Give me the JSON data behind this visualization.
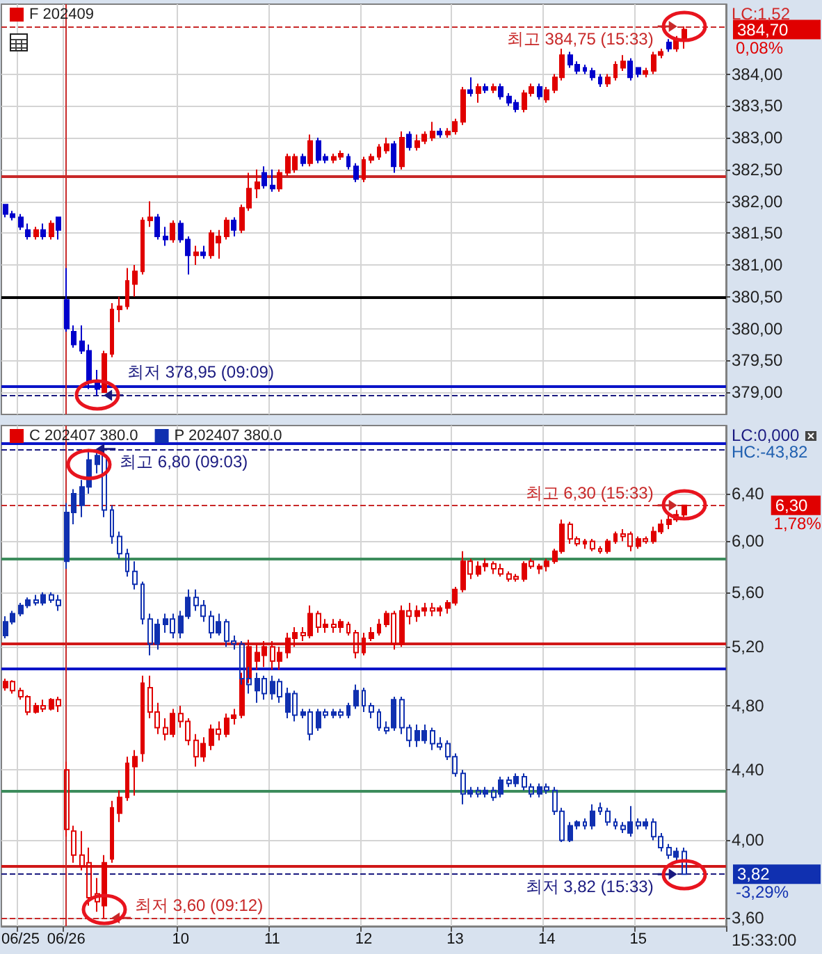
{
  "chart_data": [
    {
      "type": "candlestick",
      "legend": "top left",
      "grid": true,
      "tick_labels": "y",
      "categories": [
        null,
        null,
        "06/25",
        null,
        null,
        null,
        null,
        null,
        "06/26",
        null,
        null,
        null,
        null,
        null,
        null,
        null,
        null,
        null,
        null,
        null,
        null,
        null,
        null,
        "10",
        null,
        null,
        null,
        null,
        null,
        null,
        null,
        null,
        null,
        null,
        null,
        "11",
        null,
        null,
        null,
        null,
        null,
        null,
        null,
        null,
        null,
        null,
        null,
        "12",
        null,
        null,
        null,
        null,
        null,
        null,
        null,
        null,
        null,
        null,
        null,
        "13",
        null,
        null,
        null,
        null,
        null,
        null,
        null,
        null,
        null,
        null,
        null,
        "14",
        null,
        null,
        null,
        null,
        null,
        null,
        null,
        null,
        null,
        null,
        null,
        "15",
        null,
        null,
        null,
        null,
        null,
        null,
        null,
        null,
        null,
        null,
        null
      ],
      "series": [
        {
          "name": "F 202409",
          "ohlc": [
            [
              381.95,
              381.95,
              381.75,
              381.8
            ],
            [
              381.8,
              381.85,
              381.7,
              381.75
            ],
            [
              381.75,
              381.8,
              381.55,
              381.6
            ],
            [
              381.55,
              381.65,
              381.4,
              381.45
            ],
            [
              381.45,
              381.6,
              381.4,
              381.55
            ],
            [
              381.55,
              381.65,
              381.4,
              381.45
            ],
            [
              381.45,
              381.7,
              381.4,
              381.65
            ],
            [
              381.75,
              381.75,
              381.4,
              381.55
            ],
            [
              380.45,
              380.95,
              379.95,
              380.0
            ],
            [
              379.95,
              380.05,
              379.7,
              379.75
            ],
            [
              379.8,
              380.05,
              379.6,
              379.65
            ],
            [
              379.65,
              379.75,
              379.05,
              379.15
            ],
            [
              379.15,
              379.35,
              378.95,
              379.05
            ],
            [
              379.0,
              379.65,
              379.0,
              379.6
            ],
            [
              379.6,
              380.4,
              379.55,
              380.3
            ],
            [
              380.3,
              380.5,
              380.1,
              380.35
            ],
            [
              380.35,
              380.95,
              380.3,
              380.75
            ],
            [
              380.7,
              381.0,
              380.5,
              380.9
            ],
            [
              380.9,
              381.75,
              380.85,
              381.7
            ],
            [
              381.7,
              382.0,
              381.6,
              381.75
            ],
            [
              381.75,
              381.8,
              381.4,
              381.45
            ],
            [
              381.45,
              381.6,
              381.3,
              381.4
            ],
            [
              381.4,
              381.7,
              381.35,
              381.65
            ],
            [
              381.65,
              381.7,
              381.35,
              381.4
            ],
            [
              381.4,
              381.45,
              380.85,
              381.15
            ],
            [
              381.15,
              381.3,
              381.0,
              381.2
            ],
            [
              381.2,
              381.3,
              381.1,
              381.15
            ],
            [
              381.15,
              381.55,
              381.1,
              381.5
            ],
            [
              381.35,
              381.55,
              381.1,
              381.45
            ],
            [
              381.45,
              381.75,
              381.4,
              381.7
            ],
            [
              381.7,
              381.75,
              381.45,
              381.55
            ],
            [
              381.55,
              381.95,
              381.5,
              381.9
            ],
            [
              381.9,
              382.45,
              381.85,
              382.2
            ],
            [
              382.2,
              382.5,
              382.05,
              382.3
            ],
            [
              382.45,
              382.55,
              382.2,
              382.25
            ],
            [
              382.25,
              382.5,
              382.15,
              382.2
            ],
            [
              382.2,
              382.5,
              382.15,
              382.45
            ],
            [
              382.45,
              382.75,
              382.4,
              382.7
            ],
            [
              382.5,
              382.75,
              382.45,
              382.7
            ],
            [
              382.7,
              382.75,
              382.55,
              382.6
            ],
            [
              382.6,
              383.05,
              382.55,
              382.95
            ],
            [
              382.95,
              383.0,
              382.6,
              382.65
            ],
            [
              382.7,
              382.75,
              382.6,
              382.65
            ],
            [
              382.65,
              382.75,
              382.6,
              382.7
            ],
            [
              382.7,
              382.8,
              382.65,
              382.75
            ],
            [
              382.7,
              382.75,
              382.5,
              382.55
            ],
            [
              382.55,
              382.6,
              382.3,
              382.35
            ],
            [
              382.35,
              382.7,
              382.3,
              382.65
            ],
            [
              382.65,
              382.75,
              382.6,
              382.7
            ],
            [
              382.7,
              382.9,
              382.65,
              382.85
            ],
            [
              382.8,
              383.0,
              382.75,
              382.9
            ],
            [
              382.9,
              382.95,
              382.45,
              382.55
            ],
            [
              382.55,
              383.1,
              382.5,
              383.0
            ],
            [
              383.05,
              383.1,
              382.8,
              382.85
            ],
            [
              382.85,
              383.05,
              382.8,
              382.95
            ],
            [
              382.95,
              383.1,
              382.9,
              383.05
            ],
            [
              383.0,
              383.25,
              382.95,
              383.1
            ],
            [
              383.1,
              383.15,
              383.0,
              383.05
            ],
            [
              383.05,
              383.15,
              383.0,
              383.1
            ],
            [
              383.1,
              383.3,
              383.05,
              383.25
            ],
            [
              383.25,
              383.8,
              383.2,
              383.75
            ],
            [
              383.75,
              383.95,
              383.65,
              383.7
            ],
            [
              383.7,
              383.85,
              383.55,
              383.8
            ],
            [
              383.8,
              383.85,
              383.7,
              383.75
            ],
            [
              383.75,
              383.85,
              383.7,
              383.8
            ],
            [
              383.8,
              383.85,
              383.6,
              383.65
            ],
            [
              383.65,
              383.7,
              383.5,
              383.55
            ],
            [
              383.55,
              383.6,
              383.4,
              383.45
            ],
            [
              383.45,
              383.75,
              383.4,
              383.7
            ],
            [
              383.7,
              383.85,
              383.65,
              383.8
            ],
            [
              383.8,
              383.85,
              383.6,
              383.65
            ],
            [
              383.6,
              383.8,
              383.55,
              383.75
            ],
            [
              383.75,
              384.0,
              383.7,
              383.95
            ],
            [
              383.95,
              384.4,
              383.9,
              384.3
            ],
            [
              384.3,
              384.35,
              384.1,
              384.15
            ],
            [
              384.15,
              384.2,
              384.0,
              384.05
            ],
            [
              384.1,
              384.15,
              384.0,
              384.05
            ],
            [
              384.05,
              384.1,
              383.9,
              383.95
            ],
            [
              383.95,
              384.0,
              383.8,
              383.85
            ],
            [
              383.85,
              384.0,
              383.8,
              383.95
            ],
            [
              383.95,
              384.2,
              383.9,
              384.15
            ],
            [
              384.1,
              384.3,
              384.05,
              384.2
            ],
            [
              384.2,
              384.25,
              383.9,
              383.95
            ],
            [
              384.1,
              384.1,
              383.95,
              384.0
            ],
            [
              384.0,
              384.1,
              383.95,
              384.05
            ],
            [
              384.05,
              384.35,
              384.0,
              384.3
            ],
            [
              384.3,
              384.4,
              384.25,
              384.35
            ],
            [
              384.5,
              384.55,
              384.35,
              384.4
            ],
            [
              384.4,
              384.6,
              384.35,
              384.55
            ],
            [
              384.55,
              384.75,
              384.4,
              384.7
            ],
            null,
            null,
            null,
            null,
            null
          ],
          "colors": [
            "#0000cc",
            "#0000cc",
            "#0000cc",
            "#0000cc",
            "#e00000",
            "#0000cc",
            "#e00000",
            "#0000cc",
            "#0000cc",
            "#0000cc",
            "#0000cc",
            "#0000cc",
            "#0000cc",
            "#e00000",
            "#e00000",
            "#e00000",
            "#e00000",
            "#e00000",
            "#e00000",
            "#e00000",
            "#0000cc",
            "#0000cc",
            "#e00000",
            "#0000cc",
            "#0000cc",
            "#e00000",
            "#0000cc",
            "#e00000",
            "#e00000",
            "#e00000",
            "#0000cc",
            "#e00000",
            "#e00000",
            "#e00000",
            "#0000cc",
            "#0000cc",
            "#e00000",
            "#e00000",
            "#e00000",
            "#0000cc",
            "#e00000",
            "#0000cc",
            "#0000cc",
            "#e00000",
            "#e00000",
            "#0000cc",
            "#0000cc",
            "#e00000",
            "#e00000",
            "#e00000",
            "#e00000",
            "#0000cc",
            "#e00000",
            "#0000cc",
            "#e00000",
            "#e00000",
            "#e00000",
            "#0000cc",
            "#e00000",
            "#e00000",
            "#e00000",
            "#0000cc",
            "#e00000",
            "#0000cc",
            "#e00000",
            "#0000cc",
            "#0000cc",
            "#0000cc",
            "#e00000",
            "#e00000",
            "#0000cc",
            "#e00000",
            "#e00000",
            "#e00000",
            "#0000cc",
            "#0000cc",
            "#0000cc",
            "#0000cc",
            "#0000cc",
            "#e00000",
            "#e00000",
            "#e00000",
            "#0000cc",
            "#0000cc",
            "#e00000",
            "#e00000",
            "#e00000",
            "#0000cc",
            "#e00000",
            "#e00000",
            null,
            null,
            null,
            null,
            null
          ]
        }
      ],
      "ylim": [
        378.65,
        385.1
      ],
      "yticks": [
        {
          "value": 379,
          "label": "379,00"
        },
        {
          "value": 379.5,
          "label": "379,50"
        },
        {
          "value": 380,
          "label": "380,00"
        },
        {
          "value": 380.5,
          "label": "380,50"
        },
        {
          "value": 381,
          "label": "381,00"
        },
        {
          "value": 381.5,
          "label": "381,50"
        },
        {
          "value": 382,
          "label": "382,00"
        },
        {
          "value": 382.5,
          "label": "382,50"
        },
        {
          "value": 383,
          "label": "383,00"
        },
        {
          "value": 383.5,
          "label": "383,50"
        },
        {
          "value": 384,
          "label": "384,00"
        }
      ],
      "ref_lines": [
        {
          "axis": "y",
          "value": 384.75,
          "label": "최고 384,75 (15:33)",
          "color": "#c82828",
          "line_style": "dashed"
        },
        {
          "axis": "y",
          "value": 382.4,
          "color": "#c82828"
        },
        {
          "axis": "y",
          "value": 380.5,
          "color": "#000000"
        },
        {
          "axis": "y",
          "value": 379.1,
          "color": "#0a14c8"
        },
        {
          "axis": "y",
          "value": 378.95,
          "label": "최저 378,95 (09:09)",
          "color": "#1a1a80",
          "line_style": "dashed"
        },
        {
          "axis": "x",
          "value": "06/26",
          "color": "#c82828"
        }
      ],
      "annotations": [
        "LC:1,52",
        "384,70",
        "0,08%"
      ]
    },
    {
      "type": "candlestick",
      "legend": "top left",
      "grid": true,
      "log": true,
      "categories": [
        null,
        null,
        "06/25",
        null,
        null,
        null,
        null,
        null,
        "06/26",
        null,
        null,
        null,
        null,
        null,
        null,
        null,
        null,
        null,
        null,
        null,
        null,
        null,
        null,
        "10",
        null,
        null,
        null,
        null,
        null,
        null,
        null,
        null,
        null,
        null,
        null,
        "11",
        null,
        null,
        null,
        null,
        null,
        null,
        null,
        null,
        null,
        null,
        null,
        "12",
        null,
        null,
        null,
        null,
        null,
        null,
        null,
        null,
        null,
        null,
        null,
        "13",
        null,
        null,
        null,
        null,
        null,
        null,
        null,
        null,
        null,
        null,
        null,
        "14",
        null,
        null,
        null,
        null,
        null,
        null,
        null,
        null,
        null,
        null,
        null,
        "15",
        null,
        null,
        null,
        null,
        null,
        null,
        null,
        null,
        null,
        null,
        null
      ],
      "series": [
        {
          "name": "C 202407 380.0",
          "color": "#e00000",
          "ohlc": [
            [
              4.92,
              4.98,
              4.9,
              4.96
            ],
            [
              4.96,
              4.97,
              4.88,
              4.9
            ],
            [
              4.9,
              4.92,
              4.84,
              4.86
            ],
            [
              4.86,
              4.87,
              4.74,
              4.76
            ],
            [
              4.76,
              4.82,
              4.75,
              4.8
            ],
            [
              4.8,
              4.84,
              4.76,
              4.78
            ],
            [
              4.78,
              4.85,
              4.77,
              4.84
            ],
            [
              4.84,
              4.86,
              4.76,
              4.8
            ],
            [
              4.4,
              4.45,
              4.02,
              4.06
            ],
            [
              4.05,
              4.08,
              3.88,
              3.92
            ],
            [
              3.92,
              4.05,
              3.84,
              3.86
            ],
            [
              3.88,
              3.96,
              3.66,
              3.7
            ],
            [
              3.72,
              3.8,
              3.63,
              3.68
            ],
            [
              3.66,
              3.92,
              3.6,
              3.88
            ],
            [
              3.9,
              4.22,
              3.88,
              4.18
            ],
            [
              4.15,
              4.28,
              4.1,
              4.24
            ],
            [
              4.24,
              4.48,
              4.22,
              4.44
            ],
            [
              4.42,
              4.52,
              4.25,
              4.48
            ],
            [
              4.5,
              5.0,
              4.45,
              4.95
            ],
            [
              4.92,
              5.0,
              4.72,
              4.76
            ],
            [
              4.76,
              4.82,
              4.62,
              4.66
            ],
            [
              4.66,
              4.72,
              4.58,
              4.62
            ],
            [
              4.62,
              4.78,
              4.6,
              4.75
            ],
            [
              4.75,
              4.8,
              4.66,
              4.7
            ],
            [
              4.7,
              4.72,
              4.55,
              4.58
            ],
            [
              4.58,
              4.62,
              4.42,
              4.48
            ],
            [
              4.48,
              4.6,
              4.45,
              4.56
            ],
            [
              4.55,
              4.68,
              4.52,
              4.65
            ],
            [
              4.65,
              4.7,
              4.58,
              4.62
            ],
            [
              4.62,
              4.75,
              4.6,
              4.72
            ],
            [
              4.72,
              4.78,
              4.68,
              4.74
            ],
            [
              4.74,
              5.02,
              4.72,
              4.98
            ],
            [
              4.98,
              5.25,
              4.95,
              5.2
            ],
            [
              5.1,
              5.22,
              5.04,
              5.16
            ],
            [
              5.14,
              5.24,
              5.06,
              5.2
            ],
            [
              5.2,
              5.24,
              5.04,
              5.1
            ],
            [
              5.1,
              5.2,
              5.04,
              5.16
            ],
            [
              5.16,
              5.3,
              5.12,
              5.26
            ],
            [
              5.26,
              5.34,
              5.2,
              5.3
            ],
            [
              5.3,
              5.34,
              5.24,
              5.28
            ],
            [
              5.28,
              5.5,
              5.26,
              5.44
            ],
            [
              5.44,
              5.46,
              5.3,
              5.34
            ],
            [
              5.34,
              5.4,
              5.3,
              5.36
            ],
            [
              5.36,
              5.4,
              5.3,
              5.34
            ],
            [
              5.34,
              5.4,
              5.3,
              5.38
            ],
            [
              5.36,
              5.38,
              5.28,
              5.3
            ],
            [
              5.3,
              5.32,
              5.12,
              5.16
            ],
            [
              5.16,
              5.3,
              5.14,
              5.26
            ],
            [
              5.26,
              5.34,
              5.24,
              5.3
            ],
            [
              5.3,
              5.4,
              5.28,
              5.36
            ],
            [
              5.36,
              5.46,
              5.34,
              5.44
            ],
            [
              5.44,
              5.46,
              5.18,
              5.22
            ],
            [
              5.22,
              5.5,
              5.2,
              5.46
            ],
            [
              5.46,
              5.52,
              5.36,
              5.42
            ],
            [
              5.42,
              5.5,
              5.38,
              5.46
            ],
            [
              5.46,
              5.52,
              5.42,
              5.48
            ],
            [
              5.48,
              5.52,
              5.42,
              5.46
            ],
            [
              5.46,
              5.5,
              5.42,
              5.48
            ],
            [
              5.48,
              5.54,
              5.44,
              5.52
            ],
            [
              5.52,
              5.64,
              5.5,
              5.62
            ],
            [
              5.62,
              5.92,
              5.6,
              5.84
            ],
            [
              5.84,
              5.86,
              5.7,
              5.74
            ],
            [
              5.74,
              5.84,
              5.72,
              5.8
            ],
            [
              5.8,
              5.86,
              5.76,
              5.82
            ],
            [
              5.82,
              5.84,
              5.74,
              5.78
            ],
            [
              5.78,
              5.82,
              5.72,
              5.74
            ],
            [
              5.74,
              5.76,
              5.68,
              5.7
            ],
            [
              5.72,
              5.74,
              5.68,
              5.7
            ],
            [
              5.7,
              5.84,
              5.68,
              5.82
            ],
            [
              5.84,
              5.86,
              5.78,
              5.8
            ],
            [
              5.78,
              5.82,
              5.74,
              5.8
            ],
            [
              5.8,
              5.86,
              5.76,
              5.84
            ],
            [
              5.84,
              5.94,
              5.82,
              5.92
            ],
            [
              5.92,
              6.18,
              5.9,
              6.14
            ],
            [
              6.14,
              6.16,
              5.98,
              6.02
            ],
            [
              6.02,
              6.04,
              5.96,
              5.98
            ],
            [
              5.98,
              6.02,
              5.94,
              6.0
            ],
            [
              6.0,
              6.02,
              5.92,
              5.94
            ],
            [
              5.94,
              5.96,
              5.9,
              5.92
            ],
            [
              5.92,
              6.02,
              5.9,
              6.0
            ],
            [
              6.0,
              6.08,
              5.98,
              6.06
            ],
            [
              6.06,
              6.1,
              6.0,
              6.04
            ],
            [
              6.06,
              6.08,
              5.92,
              5.96
            ],
            [
              5.96,
              6.04,
              5.94,
              6.02
            ],
            [
              6.02,
              6.04,
              5.98,
              6.0
            ],
            [
              6.0,
              6.12,
              5.98,
              6.08
            ],
            [
              6.08,
              6.18,
              6.06,
              6.14
            ],
            [
              6.14,
              6.22,
              6.1,
              6.18
            ],
            [
              6.18,
              6.26,
              6.16,
              6.22
            ],
            [
              6.22,
              6.3,
              6.2,
              6.3
            ],
            null,
            null,
            null,
            null,
            null
          ]
        },
        {
          "name": "P 202407 380.0",
          "color": "#1030b0",
          "ohlc": [
            [
              5.28,
              5.42,
              5.26,
              5.38
            ],
            [
              5.38,
              5.46,
              5.36,
              5.44
            ],
            [
              5.44,
              5.52,
              5.42,
              5.5
            ],
            [
              5.5,
              5.56,
              5.48,
              5.54
            ],
            [
              5.54,
              5.58,
              5.5,
              5.52
            ],
            [
              5.52,
              5.6,
              5.5,
              5.58
            ],
            [
              5.58,
              5.6,
              5.52,
              5.54
            ],
            [
              5.54,
              5.58,
              5.46,
              5.5
            ],
            [
              5.84,
              6.32,
              5.78,
              6.24
            ],
            [
              6.24,
              6.44,
              6.14,
              6.4
            ],
            [
              6.3,
              6.52,
              6.2,
              6.46
            ],
            [
              6.46,
              6.8,
              6.4,
              6.7
            ],
            [
              6.66,
              6.78,
              6.58,
              6.74
            ],
            [
              6.74,
              6.76,
              6.2,
              6.26
            ],
            [
              6.26,
              6.3,
              5.98,
              6.04
            ],
            [
              6.04,
              6.08,
              5.86,
              5.9
            ],
            [
              5.9,
              5.94,
              5.72,
              5.76
            ],
            [
              5.76,
              5.84,
              5.62,
              5.66
            ],
            [
              5.66,
              5.68,
              5.36,
              5.4
            ],
            [
              5.4,
              5.44,
              5.14,
              5.22
            ],
            [
              5.22,
              5.4,
              5.18,
              5.36
            ],
            [
              5.36,
              5.44,
              5.3,
              5.4
            ],
            [
              5.4,
              5.44,
              5.26,
              5.3
            ],
            [
              5.3,
              5.46,
              5.26,
              5.42
            ],
            [
              5.42,
              5.62,
              5.4,
              5.56
            ],
            [
              5.56,
              5.62,
              5.46,
              5.5
            ],
            [
              5.5,
              5.54,
              5.38,
              5.42
            ],
            [
              5.42,
              5.46,
              5.26,
              5.3
            ],
            [
              5.3,
              5.44,
              5.28,
              5.38
            ],
            [
              5.38,
              5.4,
              5.2,
              5.24
            ],
            [
              5.24,
              5.28,
              5.18,
              5.22
            ],
            [
              5.22,
              5.24,
              4.94,
              4.98
            ],
            [
              4.98,
              5.06,
              4.88,
              4.94
            ],
            [
              4.9,
              5.02,
              4.82,
              4.98
            ],
            [
              4.98,
              5.0,
              4.84,
              4.88
            ],
            [
              4.88,
              5.0,
              4.84,
              4.96
            ],
            [
              4.96,
              4.98,
              4.82,
              4.86
            ],
            [
              4.76,
              4.92,
              4.72,
              4.88
            ],
            [
              4.88,
              4.9,
              4.7,
              4.74
            ],
            [
              4.74,
              4.78,
              4.72,
              4.76
            ],
            [
              4.76,
              4.78,
              4.58,
              4.62
            ],
            [
              4.66,
              4.78,
              4.64,
              4.76
            ],
            [
              4.76,
              4.78,
              4.72,
              4.74
            ],
            [
              4.74,
              4.78,
              4.72,
              4.76
            ],
            [
              4.76,
              4.78,
              4.72,
              4.74
            ],
            [
              4.74,
              4.82,
              4.72,
              4.8
            ],
            [
              4.8,
              4.94,
              4.78,
              4.9
            ],
            [
              4.9,
              4.92,
              4.76,
              4.8
            ],
            [
              4.8,
              4.82,
              4.72,
              4.76
            ],
            [
              4.76,
              4.78,
              4.64,
              4.66
            ],
            [
              4.66,
              4.7,
              4.62,
              4.64
            ],
            [
              4.66,
              4.86,
              4.64,
              4.84
            ],
            [
              4.84,
              4.86,
              4.62,
              4.66
            ],
            [
              4.66,
              4.68,
              4.54,
              4.58
            ],
            [
              4.58,
              4.68,
              4.54,
              4.64
            ],
            [
              4.58,
              4.68,
              4.56,
              4.64
            ],
            [
              4.64,
              4.66,
              4.52,
              4.56
            ],
            [
              4.56,
              4.6,
              4.52,
              4.54
            ],
            [
              4.56,
              4.58,
              4.46,
              4.48
            ],
            [
              4.48,
              4.5,
              4.36,
              4.38
            ],
            [
              4.38,
              4.4,
              4.2,
              4.26
            ],
            [
              4.26,
              4.3,
              4.24,
              4.28
            ],
            [
              4.28,
              4.3,
              4.24,
              4.26
            ],
            [
              4.26,
              4.3,
              4.24,
              4.28
            ],
            [
              4.28,
              4.3,
              4.22,
              4.24
            ],
            [
              4.26,
              4.36,
              4.24,
              4.34
            ],
            [
              4.34,
              4.36,
              4.3,
              4.32
            ],
            [
              4.32,
              4.38,
              4.3,
              4.36
            ],
            [
              4.36,
              4.38,
              4.28,
              4.3
            ],
            [
              4.3,
              4.32,
              4.24,
              4.26
            ],
            [
              4.26,
              4.32,
              4.24,
              4.3
            ],
            [
              4.3,
              4.32,
              4.26,
              4.28
            ],
            [
              4.28,
              4.3,
              4.14,
              4.16
            ],
            [
              4.16,
              4.18,
              3.99,
              4.0
            ],
            [
              4.0,
              4.1,
              3.99,
              4.08
            ],
            [
              4.08,
              4.11,
              4.06,
              4.1
            ],
            [
              4.1,
              4.12,
              4.06,
              4.08
            ],
            [
              4.08,
              4.2,
              4.06,
              4.16
            ],
            [
              4.18,
              4.21,
              4.14,
              4.16
            ],
            [
              4.16,
              4.18,
              4.08,
              4.1
            ],
            [
              4.1,
              4.12,
              4.06,
              4.08
            ],
            [
              4.08,
              4.1,
              4.04,
              4.06
            ],
            [
              4.04,
              4.19,
              4.02,
              4.1
            ],
            [
              4.1,
              4.12,
              4.06,
              4.08
            ],
            [
              4.08,
              4.12,
              4.06,
              4.1
            ],
            [
              4.1,
              4.12,
              4.0,
              4.02
            ],
            [
              4.02,
              4.04,
              3.94,
              3.96
            ],
            [
              3.96,
              3.98,
              3.9,
              3.92
            ],
            [
              3.91,
              3.96,
              3.89,
              3.94
            ],
            [
              3.94,
              3.96,
              3.82,
              3.82
            ],
            null,
            null,
            null,
            null,
            null
          ]
        }
      ],
      "ylim": [
        3.56,
        7.02
      ],
      "yticks": [
        {
          "value": 3.6,
          "label": "3,60"
        },
        {
          "value": 4,
          "label": "4,00"
        },
        {
          "value": 4.4,
          "label": "4,40"
        },
        {
          "value": 4.8,
          "label": "4,80"
        },
        {
          "value": 5.2,
          "label": "5,20"
        },
        {
          "value": 5.6,
          "label": "5,60"
        },
        {
          "value": 6,
          "label": "6,00"
        },
        {
          "value": 6.4,
          "label": "6,40"
        }
      ],
      "ref_lines": [
        {
          "axis": "y",
          "value": 6.85,
          "color": "#0a14c8"
        },
        {
          "axis": "y",
          "value": 6.8,
          "label": "최고 6,80 (09:03)",
          "color": "#1a1a80",
          "line_style": "dashed"
        },
        {
          "axis": "y",
          "value": 6.3,
          "label": "최고 6,30 (15:33)",
          "color": "#c82828",
          "line_style": "dashed"
        },
        {
          "axis": "y",
          "value": 5.86,
          "color": "#3c8c5c"
        },
        {
          "axis": "y",
          "value": 5.22,
          "color": "#d01818"
        },
        {
          "axis": "y",
          "value": 5.05,
          "color": "#0a14c8"
        },
        {
          "axis": "y",
          "value": 4.28,
          "color": "#3c8c5c"
        },
        {
          "axis": "y",
          "value": 3.86,
          "color": "#d01818"
        },
        {
          "axis": "y",
          "value": 3.82,
          "label": "최저 3,82 (15:33)",
          "color": "#1a1a80",
          "line_style": "dashed"
        },
        {
          "axis": "y",
          "value": 3.6,
          "label": "최저 3,60 (09:12)",
          "color": "#c82828",
          "line_style": "dashed"
        },
        {
          "axis": "x",
          "value": "06/26",
          "color": "#c82828"
        }
      ],
      "annotations": [
        "LC:0,000",
        "HC:-43,82",
        "6,30",
        "1,78%",
        "3,82",
        "-3,29%",
        "15:33:00"
      ]
    }
  ]
}
